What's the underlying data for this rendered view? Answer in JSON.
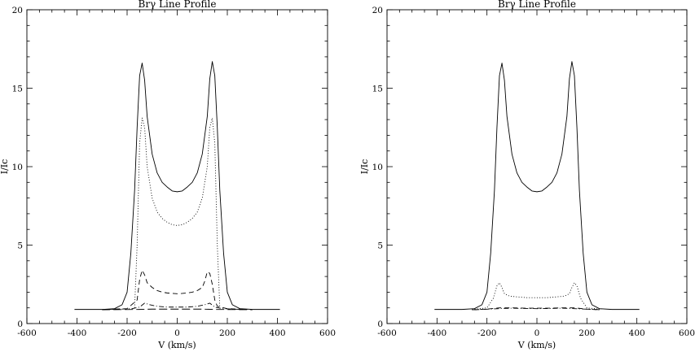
{
  "chart_data": [
    {
      "type": "line",
      "title": "Brγ Line Profile",
      "xlabel": "V (km/s)",
      "ylabel": "I/Ic",
      "xlim": [
        -600,
        600
      ],
      "ylim": [
        0,
        20
      ],
      "xticks": [
        -600,
        -400,
        -200,
        0,
        200,
        400,
        600
      ],
      "yticks": [
        0,
        5,
        10,
        15,
        20
      ],
      "grid": false,
      "legend": "none",
      "series": [
        {
          "style": "solid",
          "x": [
            -410,
            -300,
            -250,
            -220,
            -200,
            -185,
            -170,
            -160,
            -150,
            -140,
            -130,
            -120,
            -100,
            -80,
            -60,
            -40,
            -20,
            0,
            20,
            40,
            60,
            80,
            100,
            120,
            130,
            140,
            150,
            160,
            170,
            185,
            200,
            220,
            250,
            300,
            410
          ],
          "y": [
            0.9,
            0.9,
            0.95,
            1.2,
            2.0,
            4.5,
            8.5,
            12.5,
            15.8,
            16.6,
            15.5,
            13.2,
            10.8,
            9.6,
            9.0,
            8.7,
            8.45,
            8.4,
            8.45,
            8.7,
            9.0,
            9.6,
            10.8,
            13.2,
            15.6,
            16.7,
            15.8,
            12.5,
            8.5,
            4.5,
            2.0,
            1.2,
            0.95,
            0.9,
            0.9
          ]
        },
        {
          "style": "dotted",
          "x": [
            -170,
            -160,
            -150,
            -140,
            -130,
            -120,
            -100,
            -80,
            -60,
            -40,
            -20,
            0,
            20,
            40,
            60,
            80,
            100,
            120,
            130,
            140,
            150,
            160,
            170
          ],
          "y": [
            1.0,
            5.0,
            11.5,
            13.1,
            12.5,
            10.0,
            8.0,
            7.1,
            6.7,
            6.45,
            6.3,
            6.25,
            6.3,
            6.45,
            6.7,
            7.1,
            8.0,
            10.0,
            12.5,
            13.1,
            11.5,
            5.0,
            1.0
          ]
        },
        {
          "style": "dashed",
          "x": [
            -280,
            -200,
            -160,
            -150,
            -140,
            -130,
            -120,
            -100,
            -80,
            -60,
            -40,
            -20,
            0,
            20,
            40,
            60,
            80,
            100,
            110,
            120,
            130,
            140,
            150,
            160,
            200,
            280
          ],
          "y": [
            0.9,
            0.95,
            1.5,
            2.8,
            3.4,
            3.1,
            2.6,
            2.3,
            2.1,
            2.0,
            1.95,
            1.92,
            1.9,
            1.92,
            1.95,
            2.0,
            2.1,
            2.3,
            2.7,
            3.3,
            3.2,
            2.5,
            1.5,
            1.1,
            0.95,
            0.9
          ]
        },
        {
          "style": "dashdot",
          "x": [
            -260,
            -180,
            -150,
            -130,
            -110,
            -80,
            -40,
            0,
            40,
            80,
            110,
            130,
            150,
            180,
            260
          ],
          "y": [
            0.9,
            0.95,
            1.05,
            1.3,
            1.2,
            1.1,
            1.05,
            1.05,
            1.05,
            1.1,
            1.2,
            1.3,
            1.05,
            0.95,
            0.9
          ]
        },
        {
          "style": "longdash",
          "x": [
            -300,
            -150,
            -100,
            -50,
            0,
            50,
            100,
            150,
            300
          ],
          "y": [
            0.88,
            0.9,
            0.92,
            0.92,
            0.92,
            0.92,
            0.92,
            0.9,
            0.88
          ]
        }
      ]
    },
    {
      "type": "line",
      "title": "Brγ Line Profile",
      "xlabel": "V (km/s)",
      "ylabel": "I/Ic",
      "xlim": [
        -600,
        600
      ],
      "ylim": [
        0,
        20
      ],
      "xticks": [
        -600,
        -400,
        -200,
        0,
        200,
        400,
        600
      ],
      "yticks": [
        0,
        5,
        10,
        15,
        20
      ],
      "grid": false,
      "legend": "none",
      "series": [
        {
          "style": "solid",
          "x": [
            -410,
            -300,
            -250,
            -220,
            -200,
            -185,
            -170,
            -160,
            -150,
            -140,
            -130,
            -120,
            -100,
            -80,
            -60,
            -40,
            -20,
            0,
            20,
            40,
            60,
            80,
            100,
            120,
            130,
            140,
            150,
            160,
            170,
            185,
            200,
            220,
            250,
            300,
            410
          ],
          "y": [
            0.9,
            0.9,
            0.95,
            1.2,
            2.0,
            4.5,
            8.5,
            12.5,
            15.8,
            16.6,
            15.5,
            13.2,
            10.8,
            9.6,
            9.0,
            8.7,
            8.45,
            8.4,
            8.45,
            8.7,
            9.0,
            9.6,
            10.8,
            13.2,
            15.6,
            16.7,
            15.8,
            12.5,
            8.5,
            4.5,
            2.0,
            1.2,
            0.95,
            0.9,
            0.9
          ]
        },
        {
          "style": "dotted",
          "x": [
            -260,
            -200,
            -175,
            -160,
            -150,
            -140,
            -130,
            -110,
            -80,
            -40,
            0,
            40,
            80,
            110,
            130,
            140,
            150,
            160,
            175,
            200,
            260
          ],
          "y": [
            0.9,
            1.0,
            1.6,
            2.4,
            2.6,
            2.3,
            1.9,
            1.75,
            1.7,
            1.65,
            1.65,
            1.65,
            1.7,
            1.75,
            1.9,
            2.3,
            2.6,
            2.4,
            1.6,
            1.0,
            0.9
          ]
        },
        {
          "style": "dashed",
          "x": [
            -260,
            -200,
            -150,
            -100,
            -50,
            0,
            50,
            100,
            150,
            200,
            260
          ],
          "y": [
            0.88,
            0.92,
            1.0,
            1.0,
            0.98,
            0.98,
            0.98,
            1.0,
            1.0,
            0.92,
            0.88
          ]
        },
        {
          "style": "dashdot",
          "x": [
            -250,
            -150,
            -100,
            -50,
            0,
            50,
            100,
            150,
            250
          ],
          "y": [
            0.88,
            0.95,
            0.98,
            0.96,
            0.95,
            0.96,
            0.98,
            0.95,
            0.88
          ]
        }
      ]
    }
  ]
}
